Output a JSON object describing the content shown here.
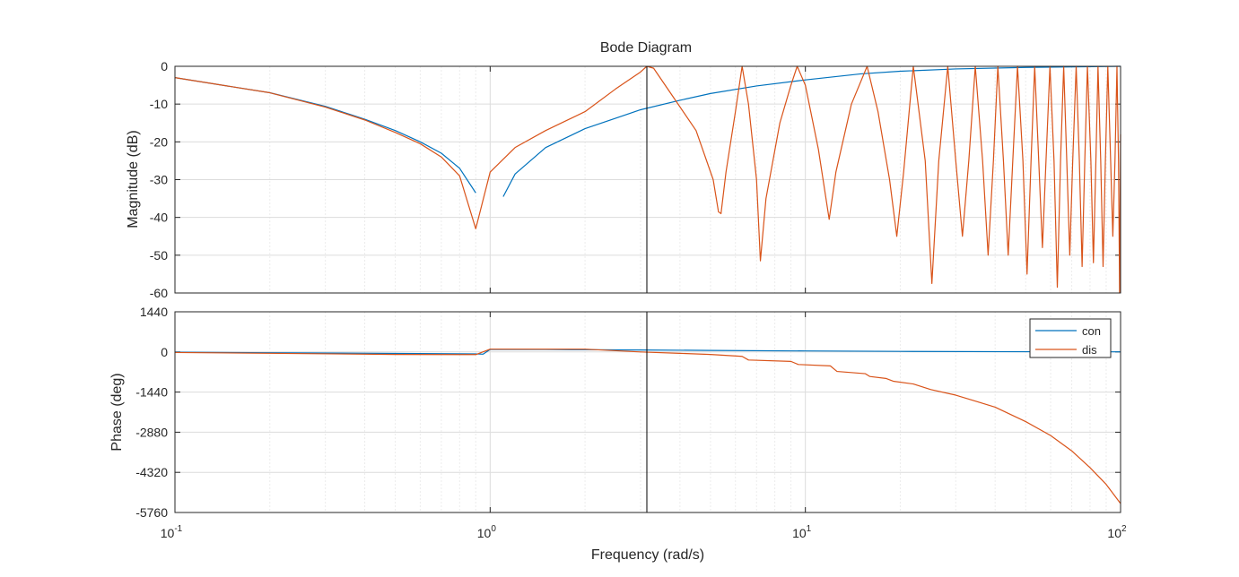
{
  "chart_data": {
    "type": "line",
    "title": "Bode Diagram",
    "xlabel": "Frequency  (rad/s)",
    "x_scale": "log",
    "xlim": [
      0.1,
      100
    ],
    "x_ticks": [
      {
        "value": 0.1,
        "base": "10",
        "exp": "-1"
      },
      {
        "value": 1,
        "base": "10",
        "exp": "0"
      },
      {
        "value": 10,
        "base": "10",
        "exp": "1"
      },
      {
        "value": 100,
        "base": "10",
        "exp": "2"
      }
    ],
    "grid": true,
    "cursor_line_x": 3.14159,
    "magnitude": {
      "ylabel": "Magnitude (dB)",
      "ylim": [
        -60,
        0
      ],
      "y_ticks": [
        "0",
        "-10",
        "-20",
        "-30",
        "-40",
        "-50",
        "-60"
      ],
      "y_tick_values": [
        0,
        -10,
        -20,
        -30,
        -40,
        -50,
        -60
      ],
      "series": [
        {
          "name": "con",
          "color": "#0072BD",
          "segments": [
            [
              [
                0.1,
                -3.0
              ],
              [
                0.2,
                -7.0
              ],
              [
                0.3,
                -10.6
              ],
              [
                0.4,
                -14.0
              ],
              [
                0.5,
                -17.0
              ],
              [
                0.6,
                -20.0
              ],
              [
                0.7,
                -23.0
              ],
              [
                0.8,
                -27.0
              ],
              [
                0.9,
                -33.5
              ]
            ],
            [
              [
                1.1,
                -34.5
              ],
              [
                1.2,
                -28.5
              ],
              [
                1.5,
                -21.5
              ],
              [
                2,
                -16.5
              ],
              [
                3,
                -11.5
              ],
              [
                4,
                -9.0
              ],
              [
                5,
                -7.2
              ],
              [
                7,
                -5.2
              ],
              [
                10,
                -3.6
              ],
              [
                15,
                -2.0
              ],
              [
                20,
                -1.3
              ],
              [
                30,
                -0.7
              ],
              [
                50,
                -0.3
              ],
              [
                100,
                0
              ]
            ]
          ]
        },
        {
          "name": "dis",
          "color": "#D95319",
          "segments": [
            [
              [
                0.1,
                -3.0
              ],
              [
                0.2,
                -7.0
              ],
              [
                0.3,
                -10.8
              ],
              [
                0.4,
                -14.2
              ],
              [
                0.5,
                -17.5
              ],
              [
                0.6,
                -20.5
              ],
              [
                0.7,
                -24.0
              ],
              [
                0.8,
                -29.0
              ],
              [
                0.9,
                -43.0
              ],
              [
                1.0,
                -28.0
              ],
              [
                1.2,
                -21.5
              ],
              [
                1.5,
                -17.0
              ],
              [
                2.0,
                -12.0
              ],
              [
                2.5,
                -6.0
              ],
              [
                3.0,
                -1.5
              ],
              [
                3.14,
                0.0
              ],
              [
                3.3,
                -0.5
              ],
              [
                3.8,
                -8.0
              ],
              [
                4.5,
                -17.0
              ],
              [
                5.1,
                -30.0
              ],
              [
                5.3,
                -38.5
              ],
              [
                5.4,
                -39.0
              ],
              [
                5.6,
                -28.0
              ],
              [
                6.0,
                -12.0
              ],
              [
                6.3,
                0.0
              ],
              [
                6.6,
                -10.0
              ],
              [
                7.0,
                -30.0
              ],
              [
                7.2,
                -51.5
              ],
              [
                7.5,
                -35.0
              ],
              [
                8.3,
                -15.0
              ],
              [
                9.0,
                -5.0
              ],
              [
                9.42,
                0.0
              ],
              [
                10.0,
                -5.0
              ],
              [
                11.0,
                -22.0
              ],
              [
                11.9,
                -40.5
              ],
              [
                12.5,
                -28.0
              ],
              [
                14.0,
                -10.0
              ],
              [
                15.7,
                0.0
              ],
              [
                17.0,
                -12.0
              ],
              [
                18.5,
                -30.0
              ],
              [
                19.5,
                -45.0
              ],
              [
                20.5,
                -28.0
              ],
              [
                22.0,
                0.0
              ],
              [
                24.0,
                -25.0
              ],
              [
                25.2,
                -57.5
              ],
              [
                26.5,
                -25.0
              ],
              [
                28.3,
                0.0
              ],
              [
                30.0,
                -25.0
              ],
              [
                31.5,
                -45.0
              ],
              [
                33.0,
                -25.0
              ],
              [
                34.6,
                0.0
              ],
              [
                36.5,
                -25.0
              ],
              [
                38.0,
                -50.0
              ],
              [
                39.5,
                -25.0
              ],
              [
                40.8,
                0.0
              ],
              [
                42.5,
                -25.0
              ],
              [
                44.0,
                -50.0
              ],
              [
                45.5,
                -25.0
              ],
              [
                47.1,
                0.0
              ],
              [
                49.0,
                -25.0
              ],
              [
                50.5,
                -55.0
              ],
              [
                52.0,
                -25.0
              ],
              [
                53.4,
                0.0
              ],
              [
                55.0,
                -25.0
              ],
              [
                56.5,
                -48.0
              ],
              [
                58.0,
                -25.0
              ],
              [
                59.7,
                0.0
              ],
              [
                61.5,
                -25.0
              ],
              [
                63.0,
                -58.5
              ],
              [
                64.5,
                -25.0
              ],
              [
                66.0,
                0.0
              ],
              [
                67.5,
                -25.0
              ],
              [
                69.0,
                -50.0
              ],
              [
                70.5,
                -25.0
              ],
              [
                72.3,
                0.0
              ],
              [
                74.0,
                -25.0
              ],
              [
                75.5,
                -53.0
              ],
              [
                77.0,
                -25.0
              ],
              [
                78.5,
                0.0
              ],
              [
                80.5,
                -25.0
              ],
              [
                82.0,
                -52.0
              ],
              [
                83.5,
                -25.0
              ],
              [
                84.8,
                0.0
              ],
              [
                86.5,
                -25.0
              ],
              [
                88.0,
                -53.0
              ],
              [
                89.5,
                -25.0
              ],
              [
                91.1,
                0.0
              ],
              [
                93.0,
                -25.0
              ],
              [
                94.5,
                -45.0
              ],
              [
                96.0,
                -25.0
              ],
              [
                97.4,
                0.0
              ],
              [
                98.5,
                -25.0
              ],
              [
                99.3,
                -60.0
              ],
              [
                100.0,
                -18.0
              ]
            ]
          ]
        }
      ]
    },
    "phase": {
      "ylabel": "Phase (deg)",
      "ylim": [
        -5760,
        1440
      ],
      "y_ticks": [
        "1440",
        "0",
        "-1440",
        "-2880",
        "-4320",
        "-5760"
      ],
      "y_tick_values": [
        1440,
        0,
        -1440,
        -2880,
        -4320,
        -5760
      ],
      "series": [
        {
          "name": "con",
          "color": "#0072BD",
          "points": [
            [
              0.1,
              -10
            ],
            [
              0.9,
              -70
            ],
            [
              0.95,
              -80
            ],
            [
              1.0,
              90
            ],
            [
              1.5,
              88
            ],
            [
              2,
              80
            ],
            [
              3,
              70
            ],
            [
              5,
              55
            ],
            [
              10,
              35
            ],
            [
              20,
              20
            ],
            [
              50,
              8
            ],
            [
              100,
              4
            ]
          ]
        },
        {
          "name": "dis",
          "color": "#D95319",
          "points": [
            [
              0.1,
              -20
            ],
            [
              0.5,
              -90
            ],
            [
              0.9,
              -95
            ],
            [
              1.0,
              100
            ],
            [
              2.0,
              100
            ],
            [
              3.0,
              0
            ],
            [
              4.0,
              -50
            ],
            [
              5.0,
              -90
            ],
            [
              6.3,
              -160
            ],
            [
              6.6,
              -290
            ],
            [
              9.0,
              -340
            ],
            [
              9.5,
              -450
            ],
            [
              12.0,
              -500
            ],
            [
              12.6,
              -700
            ],
            [
              15.5,
              -780
            ],
            [
              16.0,
              -880
            ],
            [
              18.0,
              -950
            ],
            [
              19.0,
              -1050
            ],
            [
              22.0,
              -1150
            ],
            [
              25.0,
              -1350
            ],
            [
              30.0,
              -1550
            ],
            [
              35.0,
              -1780
            ],
            [
              40.0,
              -1980
            ],
            [
              50.0,
              -2500
            ],
            [
              60.0,
              -3000
            ],
            [
              70.0,
              -3550
            ],
            [
              80.0,
              -4150
            ],
            [
              90.0,
              -4750
            ],
            [
              100.0,
              -5440
            ]
          ]
        }
      ],
      "legend": {
        "placement": "top-right",
        "entries": [
          {
            "label": "con",
            "color": "#0072BD"
          },
          {
            "label": "dis",
            "color": "#D95319"
          }
        ]
      }
    }
  }
}
